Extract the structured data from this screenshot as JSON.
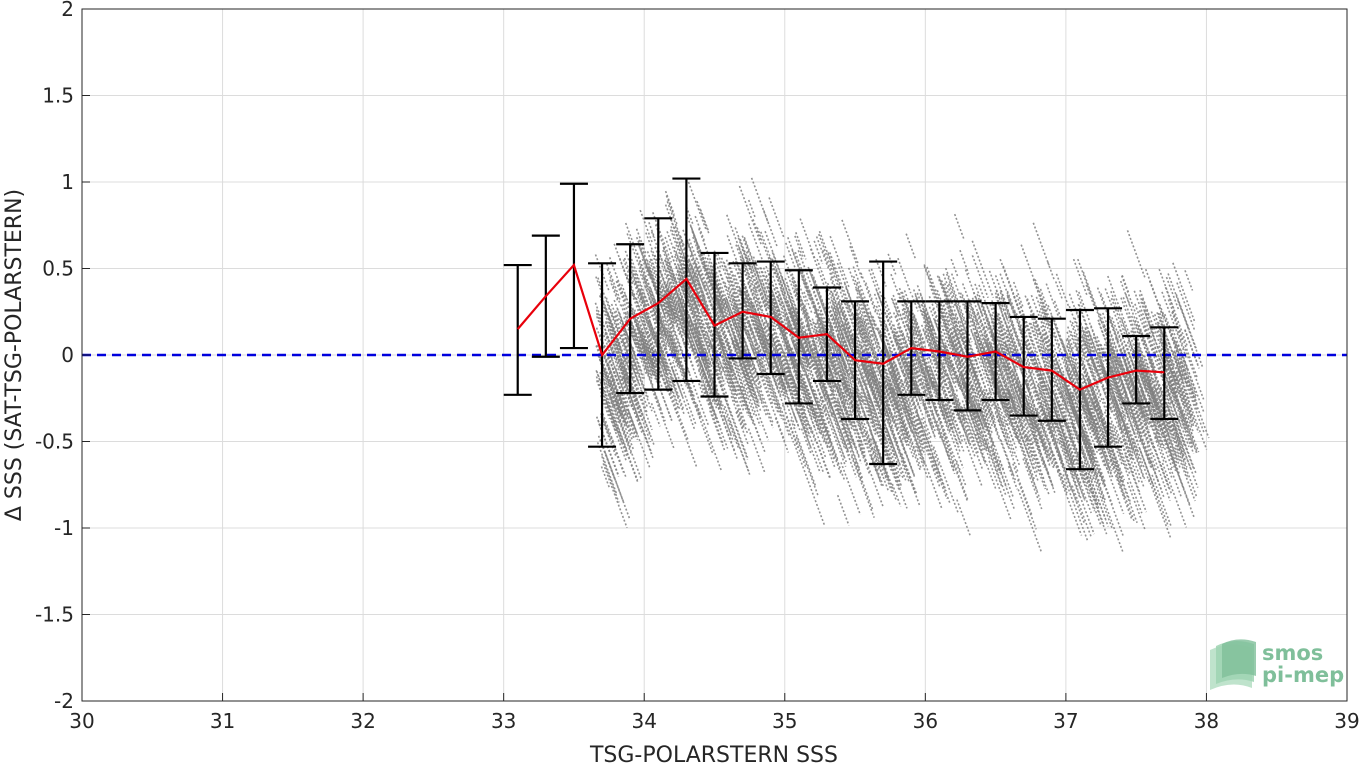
{
  "chart_data": {
    "type": "scatter",
    "title": "",
    "xlabel": "TSG-POLARSTERN SSS",
    "ylabel": "Δ SSS (SAT-TSG-POLARSTERN)",
    "xlim": [
      30,
      39
    ],
    "ylim": [
      -2,
      2
    ],
    "xticks": [
      "30",
      "31",
      "32",
      "33",
      "34",
      "35",
      "36",
      "37",
      "38",
      "39"
    ],
    "yticks": [
      "-2",
      "-1.5",
      "-1",
      "-0.5",
      "0",
      "0.5",
      "1",
      "1.5",
      "2"
    ],
    "grid": true,
    "reference_line": {
      "y": 0,
      "style": "dashed",
      "color": "#0000dd"
    },
    "scatter_color": "#808080",
    "mean_line_color": "#e8000b",
    "errorbar_color": "#000000",
    "binned_stats": {
      "x": [
        33.1,
        33.3,
        33.5,
        33.7,
        33.9,
        34.1,
        34.3,
        34.5,
        34.7,
        34.9,
        35.1,
        35.3,
        35.5,
        35.7,
        35.9,
        36.1,
        36.3,
        36.5,
        36.7,
        36.9,
        37.1,
        37.3,
        37.5,
        37.7
      ],
      "mean": [
        0.15,
        0.34,
        0.52,
        0.0,
        0.21,
        0.3,
        0.44,
        0.17,
        0.25,
        0.22,
        0.1,
        0.12,
        -0.03,
        -0.05,
        0.04,
        0.02,
        -0.01,
        0.02,
        -0.07,
        -0.09,
        -0.2,
        -0.13,
        -0.09,
        -0.1
      ],
      "low": [
        -0.23,
        -0.01,
        0.04,
        -0.53,
        -0.22,
        -0.2,
        -0.15,
        -0.24,
        -0.02,
        -0.11,
        -0.28,
        -0.15,
        -0.37,
        -0.63,
        -0.23,
        -0.26,
        -0.32,
        -0.26,
        -0.35,
        -0.38,
        -0.66,
        -0.53,
        -0.28,
        -0.37
      ],
      "high": [
        0.52,
        0.69,
        0.99,
        0.53,
        0.64,
        0.79,
        1.02,
        0.59,
        0.53,
        0.54,
        0.49,
        0.39,
        0.31,
        0.54,
        0.31,
        0.31,
        0.31,
        0.3,
        0.22,
        0.21,
        0.26,
        0.27,
        0.11,
        0.16
      ]
    },
    "scatter_envelope": {
      "x_range": [
        33.65,
        37.85
      ],
      "description_of_density": "dense cloud of small grey points; centre follows mean line, spread about ±0.5"
    }
  },
  "logo": {
    "line1": "smos",
    "line2": "pi-mep"
  }
}
